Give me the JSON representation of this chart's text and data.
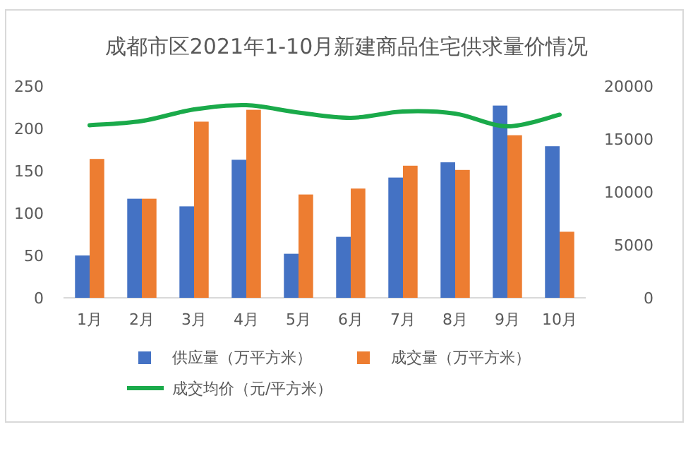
{
  "chart_data": {
    "type": "bar",
    "title": "成都市区2021年1-10月新建商品住宅供求量价情况",
    "categories": [
      "1月",
      "2月",
      "3月",
      "4月",
      "5月",
      "6月",
      "7月",
      "8月",
      "9月",
      "10月"
    ],
    "series": [
      {
        "name": "供应量（万平方米）",
        "color": "#4472c4",
        "values": [
          50,
          117,
          108,
          163,
          52,
          72,
          142,
          160,
          227,
          179
        ]
      },
      {
        "name": "成交量（万平方米）",
        "color": "#ed7d31",
        "values": [
          164,
          117,
          208,
          222,
          122,
          129,
          156,
          151,
          192,
          78
        ]
      },
      {
        "name": "成交均价（元/平方米）",
        "type": "line",
        "axis": "y2",
        "color": "#1aaa4a",
        "values": [
          16300,
          16700,
          17800,
          18200,
          17500,
          17000,
          17600,
          17400,
          16200,
          17300
        ]
      }
    ],
    "ylim": [
      0,
      250
    ],
    "yticks": [
      0,
      50,
      100,
      150,
      200,
      250
    ],
    "y2lim": [
      0,
      20000
    ],
    "y2ticks": [
      0,
      5000,
      10000,
      15000,
      20000
    ],
    "grid": false,
    "legend": "bottom",
    "marker": "none"
  }
}
